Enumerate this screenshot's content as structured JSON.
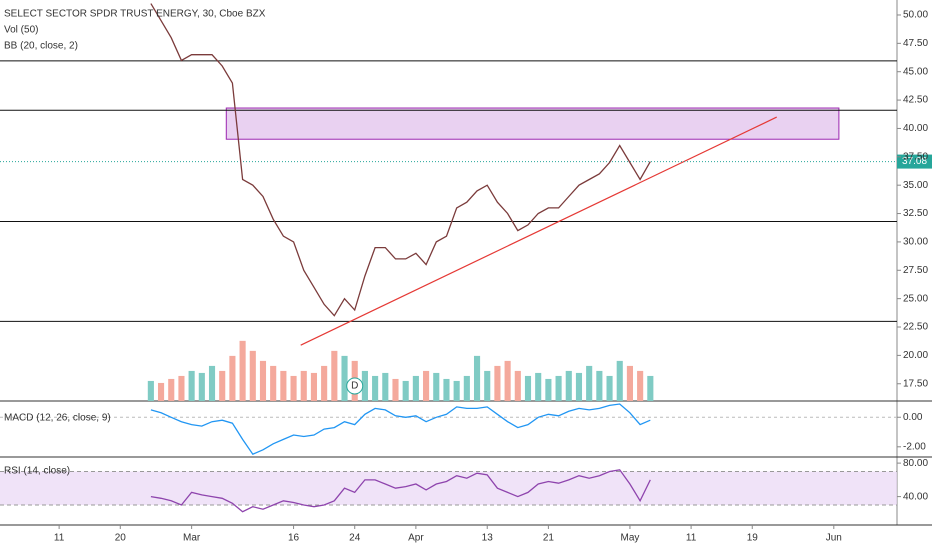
{
  "chart_data": [
    {
      "type": "line",
      "title": "SELECT SECTOR SPDR TRUST ENERGY, 30, Cboe BZX",
      "indicators": [
        "Vol (50)",
        "BB (20, close, 2)"
      ],
      "x": [
        9,
        10,
        11,
        12,
        13,
        14,
        15,
        16,
        17,
        18,
        19,
        20,
        21,
        22,
        23,
        24,
        25,
        26,
        27,
        28,
        29,
        30,
        31,
        32,
        33,
        34,
        35,
        36,
        37,
        38,
        39,
        40,
        41,
        42,
        43,
        44,
        45,
        46,
        47,
        48,
        49,
        50,
        51,
        52,
        53,
        54,
        55,
        56,
        57,
        58
      ],
      "values": [
        51,
        49.5,
        48,
        46,
        46.5,
        46.5,
        46.5,
        45.5,
        44,
        35.5,
        35,
        34,
        32,
        30.5,
        30,
        27.5,
        26,
        24.5,
        23.5,
        25,
        24,
        27,
        29.5,
        29.5,
        28.5,
        28.5,
        29,
        28,
        30,
        30.5,
        33,
        33.5,
        34.5,
        35,
        33.5,
        32.5,
        31,
        31.5,
        32.5,
        33,
        33,
        34,
        35,
        35.5,
        36,
        37,
        38.5,
        37,
        35.5,
        37.08
      ],
      "color": "#7b3b3b",
      "volume": [
        20,
        18,
        22,
        25,
        30,
        28,
        35,
        30,
        45,
        60,
        50,
        40,
        35,
        30,
        25,
        30,
        28,
        35,
        50,
        45,
        40,
        30,
        25,
        28,
        22,
        20,
        25,
        30,
        28,
        22,
        20,
        25,
        45,
        30,
        35,
        40,
        30,
        25,
        28,
        22,
        25,
        30,
        28,
        35,
        30,
        25,
        40,
        35,
        30,
        25
      ],
      "vlim": [
        0,
        400
      ],
      "xlim": [
        -5.8,
        82.2
      ],
      "ylim": [
        15.98,
        51.32
      ],
      "yticks": [
        {
          "value": 50,
          "label": "50.00"
        },
        {
          "value": 47.5,
          "label": "47.50"
        },
        {
          "value": 45,
          "label": "45.00"
        },
        {
          "value": 42.5,
          "label": "42.50"
        },
        {
          "value": 40,
          "label": "40.00"
        },
        {
          "value": 37.5,
          "label": "37.50"
        },
        {
          "value": 35,
          "label": "35.00"
        },
        {
          "value": 32.5,
          "label": "32.50"
        },
        {
          "value": 30,
          "label": "30.00"
        },
        {
          "value": 27.5,
          "label": "27.50"
        },
        {
          "value": 25,
          "label": "25.00"
        },
        {
          "value": 22.5,
          "label": "22.50"
        },
        {
          "value": 20,
          "label": "20.00"
        },
        {
          "value": 17.5,
          "label": "17.50"
        }
      ],
      "last_price": 37.08,
      "levels": [
        45.95,
        41.6,
        31.8,
        23
      ],
      "zone": {
        "x": [
          16.4,
          76.5
        ],
        "y": [
          39.05,
          41.8
        ]
      },
      "trendline": {
        "x": [
          23.7,
          70.4
        ],
        "y": [
          20.9,
          41.0
        ]
      },
      "dividend": {
        "x": 29,
        "label": "D"
      }
    },
    {
      "type": "line",
      "title": "MACD (12, 26, close, 9)",
      "x": [
        9,
        10,
        11,
        12,
        13,
        14,
        15,
        16,
        17,
        18,
        19,
        20,
        21,
        22,
        23,
        24,
        25,
        26,
        27,
        28,
        29,
        30,
        31,
        32,
        33,
        34,
        35,
        36,
        37,
        38,
        39,
        40,
        41,
        42,
        43,
        44,
        45,
        46,
        47,
        48,
        49,
        50,
        51,
        52,
        53,
        54,
        55,
        56,
        57,
        58
      ],
      "values": [
        0.5,
        0.3,
        0,
        -0.3,
        -0.5,
        -0.6,
        -0.3,
        -0.2,
        -0.4,
        -1.5,
        -2.5,
        -2.2,
        -1.8,
        -1.5,
        -1.2,
        -1.3,
        -1.2,
        -0.8,
        -0.7,
        -0.3,
        -0.5,
        0.2,
        0.6,
        0.5,
        0.1,
        0,
        0.1,
        -0.3,
        0,
        0.2,
        0.7,
        0.6,
        0.6,
        0.7,
        0.2,
        -0.3,
        -0.7,
        -0.5,
        0,
        0.2,
        0.1,
        0.4,
        0.6,
        0.5,
        0.6,
        0.8,
        0.9,
        0.3,
        -0.5,
        -0.2
      ],
      "color": "#2196f3",
      "xlim": [
        -5.8,
        82.2
      ],
      "ylim": [
        -2.69,
        1.1
      ],
      "yticks": [
        {
          "value": 0,
          "label": "0.00"
        },
        {
          "value": -2,
          "label": "-2.00"
        }
      ]
    },
    {
      "type": "line",
      "title": "RSI (14, close)",
      "x": [
        9,
        10,
        11,
        12,
        13,
        14,
        15,
        16,
        17,
        18,
        19,
        20,
        21,
        22,
        23,
        24,
        25,
        26,
        27,
        28,
        29,
        30,
        31,
        32,
        33,
        34,
        35,
        36,
        37,
        38,
        39,
        40,
        41,
        42,
        43,
        44,
        45,
        46,
        47,
        48,
        49,
        50,
        51,
        52,
        53,
        54,
        55,
        56,
        57,
        58
      ],
      "values": [
        40,
        38,
        35,
        30,
        45,
        42,
        40,
        38,
        32,
        22,
        28,
        25,
        30,
        35,
        33,
        30,
        28,
        30,
        35,
        50,
        45,
        60,
        60,
        55,
        50,
        52,
        55,
        48,
        55,
        58,
        65,
        62,
        68,
        66,
        50,
        45,
        40,
        45,
        55,
        58,
        56,
        60,
        65,
        62,
        65,
        70,
        72,
        55,
        35,
        60
      ],
      "color": "#8e44ad",
      "band": [
        30,
        70
      ],
      "xlim": [
        -5.8,
        82.2
      ],
      "ylim": [
        6.1,
        87.3
      ],
      "yticks": [
        {
          "value": 80,
          "label": "80.00"
        },
        {
          "value": 40,
          "label": "40.00"
        }
      ],
      "xticks": [
        {
          "value": 0,
          "label": "11"
        },
        {
          "value": 6,
          "label": "20"
        },
        {
          "value": 13,
          "label": "Mar"
        },
        {
          "value": 23,
          "label": "16"
        },
        {
          "value": 29,
          "label": "24"
        },
        {
          "value": 35,
          "label": "Apr"
        },
        {
          "value": 42,
          "label": "13"
        },
        {
          "value": 48,
          "label": "21"
        },
        {
          "value": 56,
          "label": "May"
        },
        {
          "value": 62,
          "label": "11"
        },
        {
          "value": 68,
          "label": "19"
        },
        {
          "value": 76,
          "label": "Jun"
        }
      ]
    }
  ]
}
